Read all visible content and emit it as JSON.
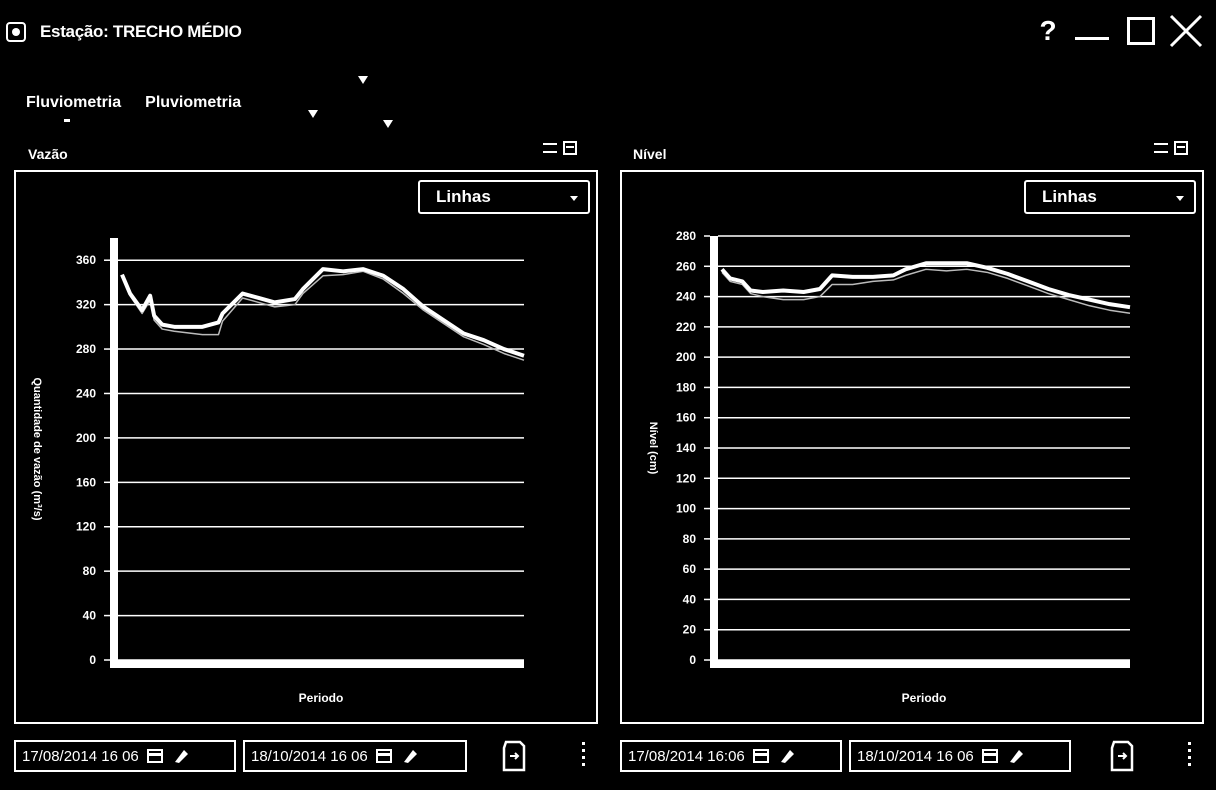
{
  "window": {
    "title": "Estação: TRECHO MÉDIO",
    "help_label": "?"
  },
  "tabs": [
    {
      "label": "Fluviometria",
      "active": true
    },
    {
      "label": "Pluviometria",
      "active": false
    }
  ],
  "panels": [
    {
      "label": "Vazão",
      "view_select": {
        "value": "Linhas"
      },
      "start_date": "17/08/2014 16 06",
      "end_date": "18/10/2014 16 06"
    },
    {
      "label": "Nível",
      "view_select": {
        "value": "Linhas"
      },
      "start_date": "17/08/2014 16:06",
      "end_date": "18/10/2014 16 06"
    }
  ],
  "chart_data": [
    {
      "type": "line",
      "title": "",
      "xlabel": "Periodo",
      "ylabel": "Quantidade de vazão (m³/s)",
      "ylim": [
        0,
        380
      ],
      "yticks": [
        0,
        40,
        80,
        120,
        160,
        200,
        240,
        280,
        320,
        360
      ],
      "grid": true,
      "x": [
        0,
        0.02,
        0.05,
        0.07,
        0.08,
        0.1,
        0.13,
        0.2,
        0.24,
        0.25,
        0.3,
        0.34,
        0.38,
        0.43,
        0.45,
        0.5,
        0.55,
        0.6,
        0.65,
        0.7,
        0.75,
        0.8,
        0.85,
        0.9,
        0.95,
        1.0
      ],
      "series": [
        {
          "values": [
            347,
            330,
            315,
            328,
            310,
            302,
            300,
            300,
            304,
            312,
            330,
            326,
            322,
            325,
            334,
            352,
            350,
            352,
            346,
            334,
            318,
            306,
            294,
            288,
            280,
            274
          ],
          "color": "#ffffff"
        },
        {
          "values": [
            345,
            328,
            312,
            324,
            306,
            298,
            296,
            293,
            293,
            305,
            326,
            322,
            318,
            320,
            330,
            346,
            347,
            350,
            343,
            330,
            315,
            303,
            291,
            284,
            276,
            270
          ],
          "color": "#bbbbbb"
        }
      ]
    },
    {
      "type": "line",
      "title": "",
      "xlabel": "Periodo",
      "ylabel": "Nível (cm)",
      "ylim": [
        0,
        280
      ],
      "yticks": [
        0,
        20,
        40,
        60,
        80,
        100,
        120,
        140,
        160,
        180,
        200,
        220,
        240,
        260,
        280
      ],
      "grid": true,
      "x": [
        0,
        0.02,
        0.05,
        0.07,
        0.1,
        0.15,
        0.2,
        0.24,
        0.27,
        0.32,
        0.37,
        0.42,
        0.45,
        0.5,
        0.55,
        0.6,
        0.65,
        0.7,
        0.75,
        0.8,
        0.85,
        0.9,
        0.95,
        1.0
      ],
      "series": [
        {
          "values": [
            258,
            252,
            250,
            244,
            243,
            244,
            243,
            245,
            254,
            253,
            253,
            254,
            258,
            262,
            262,
            262,
            259,
            255,
            250,
            245,
            241,
            238,
            235,
            233
          ],
          "color": "#ffffff"
        },
        {
          "values": [
            256,
            250,
            248,
            242,
            240,
            238,
            238,
            240,
            248,
            248,
            250,
            251,
            254,
            258,
            257,
            258,
            256,
            252,
            247,
            242,
            238,
            234,
            231,
            229
          ],
          "color": "#bbbbbb"
        }
      ]
    }
  ]
}
